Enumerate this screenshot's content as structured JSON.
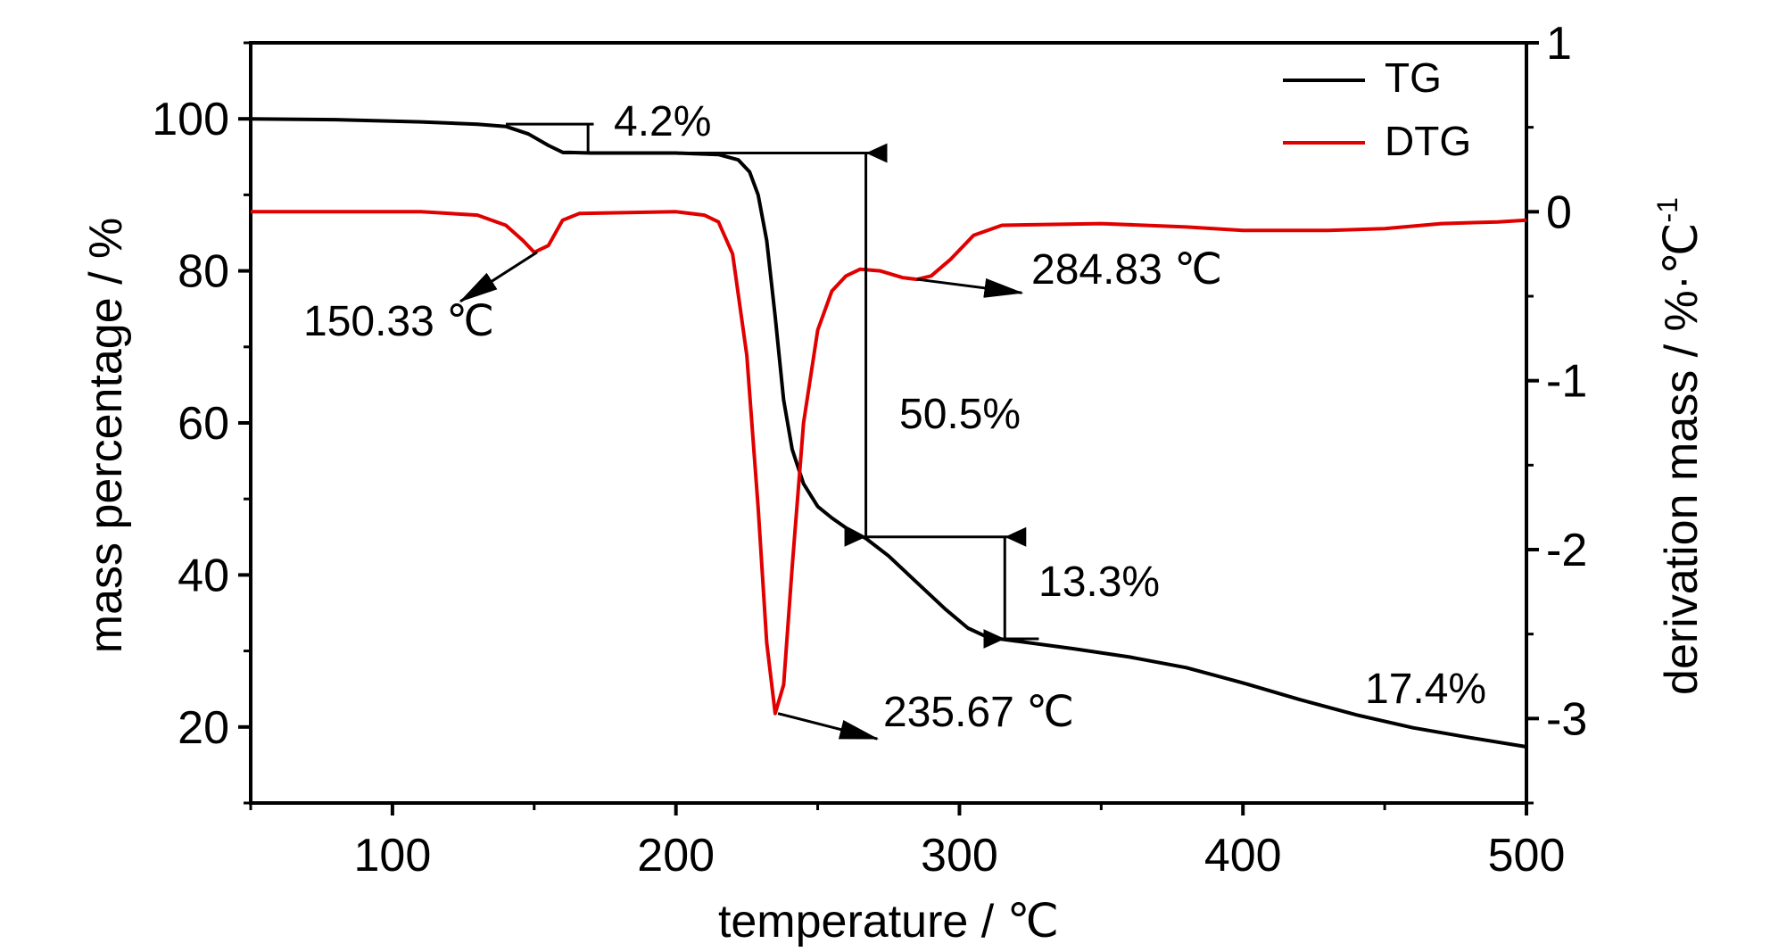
{
  "chart_data": {
    "type": "line",
    "xlabel": "temperature / ℃",
    "ylabel_left": "mass percentage / %",
    "ylabel_right": "derivation mass / %·℃",
    "ylabel_right_superscript": "-1",
    "xlim": [
      50,
      500
    ],
    "ylim_left": [
      10,
      110
    ],
    "ylim_right": [
      -3.5,
      1
    ],
    "x_ticks": [
      100,
      200,
      300,
      400,
      500
    ],
    "y_ticks_left": [
      20,
      40,
      60,
      80,
      100
    ],
    "y_ticks_right": [
      1,
      0,
      -1,
      -2,
      -3
    ],
    "grid": false,
    "legend_position": "top-right",
    "legend": [
      {
        "label": "TG",
        "color": "#000000"
      },
      {
        "label": "DTG",
        "color": "#e00000"
      }
    ],
    "series": [
      {
        "name": "TG",
        "axis": "left",
        "color": "#000000",
        "points": [
          [
            50,
            100
          ],
          [
            80,
            99.9
          ],
          [
            110,
            99.6
          ],
          [
            130,
            99.3
          ],
          [
            140,
            99.0
          ],
          [
            148,
            98.0
          ],
          [
            155,
            96.5
          ],
          [
            160,
            95.6
          ],
          [
            170,
            95.5
          ],
          [
            200,
            95.5
          ],
          [
            215,
            95.3
          ],
          [
            222,
            94.6
          ],
          [
            226,
            93.0
          ],
          [
            229,
            90.0
          ],
          [
            232,
            84.0
          ],
          [
            235,
            74.0
          ],
          [
            238,
            63.0
          ],
          [
            241,
            56.5
          ],
          [
            245,
            52.0
          ],
          [
            250,
            49.0
          ],
          [
            255,
            47.5
          ],
          [
            260,
            46.2
          ],
          [
            267,
            44.8
          ],
          [
            275,
            42.5
          ],
          [
            285,
            39.0
          ],
          [
            295,
            35.5
          ],
          [
            303,
            33.0
          ],
          [
            310,
            31.8
          ],
          [
            320,
            31.3
          ],
          [
            340,
            30.3
          ],
          [
            360,
            29.2
          ],
          [
            380,
            27.8
          ],
          [
            400,
            25.8
          ],
          [
            420,
            23.6
          ],
          [
            440,
            21.6
          ],
          [
            460,
            19.9
          ],
          [
            480,
            18.6
          ],
          [
            500,
            17.4
          ]
        ]
      },
      {
        "name": "DTG",
        "axis": "right",
        "color": "#e00000",
        "points": [
          [
            50,
            0.0
          ],
          [
            80,
            0.0
          ],
          [
            110,
            0.0
          ],
          [
            130,
            -0.02
          ],
          [
            140,
            -0.08
          ],
          [
            146,
            -0.17
          ],
          [
            150,
            -0.24
          ],
          [
            155,
            -0.2
          ],
          [
            160,
            -0.05
          ],
          [
            166,
            -0.01
          ],
          [
            200,
            0.0
          ],
          [
            210,
            -0.02
          ],
          [
            215,
            -0.06
          ],
          [
            220,
            -0.25
          ],
          [
            225,
            -0.85
          ],
          [
            229,
            -1.75
          ],
          [
            232,
            -2.55
          ],
          [
            235,
            -2.97
          ],
          [
            238,
            -2.8
          ],
          [
            241,
            -2.1
          ],
          [
            245,
            -1.25
          ],
          [
            250,
            -0.7
          ],
          [
            255,
            -0.47
          ],
          [
            260,
            -0.38
          ],
          [
            265,
            -0.34
          ],
          [
            272,
            -0.35
          ],
          [
            280,
            -0.39
          ],
          [
            285,
            -0.4
          ],
          [
            290,
            -0.38
          ],
          [
            297,
            -0.28
          ],
          [
            305,
            -0.14
          ],
          [
            315,
            -0.08
          ],
          [
            350,
            -0.07
          ],
          [
            380,
            -0.09
          ],
          [
            400,
            -0.11
          ],
          [
            430,
            -0.11
          ],
          [
            450,
            -0.1
          ],
          [
            470,
            -0.07
          ],
          [
            490,
            -0.06
          ],
          [
            500,
            -0.05
          ]
        ]
      }
    ],
    "annotations": [
      {
        "id": "tg-step1",
        "text": "4.2%"
      },
      {
        "id": "tg-step2",
        "text": "50.5%"
      },
      {
        "id": "tg-step3",
        "text": "13.3%"
      },
      {
        "id": "tg-residue",
        "text": "17.4%"
      },
      {
        "id": "dtg-peak1",
        "text": "150.33 ℃"
      },
      {
        "id": "dtg-peak2",
        "text": "235.67 ℃"
      },
      {
        "id": "dtg-peak3",
        "text": "284.83 ℃"
      }
    ]
  }
}
